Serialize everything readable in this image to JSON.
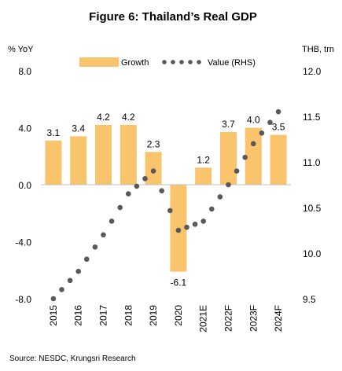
{
  "chart_data": {
    "type": "bar+line",
    "title": "Figure 6: Thailand’s Real GDP",
    "y_left_label": "% YoY",
    "y_right_label": "THB, trn",
    "categories": [
      "2015",
      "2016",
      "2017",
      "2018",
      "2019",
      "2020",
      "2021E",
      "2022F",
      "2023F",
      "2024F"
    ],
    "left_ticks": [
      "8.0",
      "4.0",
      "0.0",
      "-4.0",
      "-8.0"
    ],
    "right_ticks": [
      "12.0",
      "11.5",
      "11.0",
      "10.5",
      "10.0",
      "9.5"
    ],
    "ylim_left": [
      -8,
      8
    ],
    "ylim_right": [
      9.5,
      12.0
    ],
    "series": [
      {
        "name": "Growth",
        "type": "bar",
        "axis": "left",
        "color": "#F9C46B",
        "values": [
          3.1,
          3.4,
          4.2,
          4.2,
          2.3,
          -6.1,
          1.2,
          3.7,
          4.0,
          3.5
        ],
        "labels": [
          "3.1",
          "3.4",
          "4.2",
          "4.2",
          "2.3",
          "-6.1",
          "1.2",
          "3.7",
          "4.0",
          "3.5"
        ]
      },
      {
        "name": "Value (RHS)",
        "type": "line",
        "axis": "right",
        "style": "dotted",
        "color": "#595959",
        "values": [
          9.5,
          9.8,
          10.2,
          10.65,
          10.9,
          10.25,
          10.35,
          10.75,
          11.2,
          11.55
        ]
      }
    ],
    "grid": false,
    "legend_position": "top"
  },
  "source": "Source: NESDC, Krungsri Research"
}
